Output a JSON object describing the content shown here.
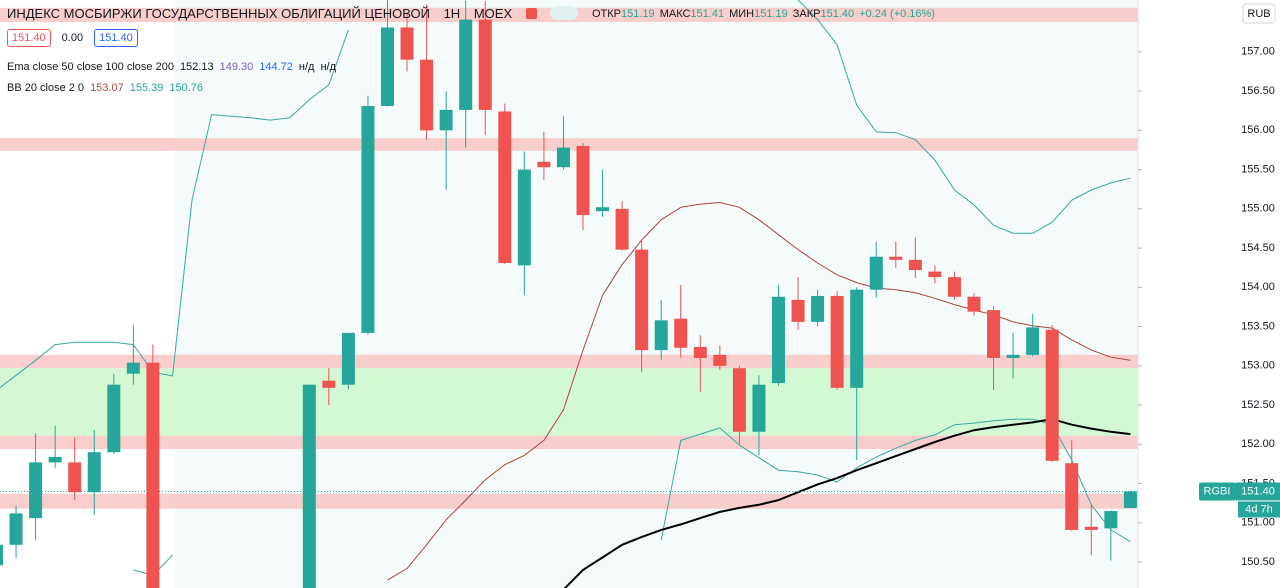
{
  "chart_data": {
    "type": "candlestick",
    "title": "ИНДЕКС МОСБИРЖИ ГОСУДАРСТВЕННЫХ ОБЛИГАЦИЙ ЦЕНОВОЙ",
    "interval": "1H",
    "exchange": "MOEX",
    "ohlc": [
      {
        "label": "ОТКР",
        "value": "151.19"
      },
      {
        "label": "МАКС",
        "value": "151.41"
      },
      {
        "label": "МИН",
        "value": "151.19"
      },
      {
        "label": "ЗАКР",
        "value": "151.40"
      }
    ],
    "change": "+0.24 (+0.16%)",
    "price_boxes": [
      "151.40",
      "0.00",
      "151.40"
    ],
    "indicators": [
      {
        "name": "Ema close 50 close 100 close 200",
        "values": [
          {
            "text": "152.13",
            "color": "#131722"
          },
          {
            "text": "149.30",
            "color": "#7e57c2"
          },
          {
            "text": "144.72",
            "color": "#2962ff"
          },
          {
            "text": "н/д",
            "color": "#131722"
          },
          {
            "text": "н/д",
            "color": "#131722"
          }
        ]
      },
      {
        "name": "BB 20 close 2 0",
        "values": [
          {
            "text": "153.07",
            "color": "#b24a3f"
          },
          {
            "text": "155.39",
            "color": "#26a69a"
          },
          {
            "text": "150.76",
            "color": "#26a69a"
          }
        ]
      }
    ],
    "currency": "RUB",
    "last_price": {
      "symbol": "RGBI",
      "value": 151.4,
      "label": "151.40",
      "countdown": "4d 7h",
      "color": "#26a69a"
    },
    "up_color": "#26a69a",
    "down_color": "#ef5350",
    "ylim": [
      150.17,
      157.66
    ],
    "yticks": [
      {
        "value": 157,
        "label": "157.00"
      },
      {
        "value": 156.5,
        "label": "156.50"
      },
      {
        "value": 156,
        "label": "156.00"
      },
      {
        "value": 155.5,
        "label": "155.50"
      },
      {
        "value": 155,
        "label": "155.00"
      },
      {
        "value": 154.5,
        "label": "154.50"
      },
      {
        "value": 154,
        "label": "154.00"
      },
      {
        "value": 153.5,
        "label": "153.50"
      },
      {
        "value": 153,
        "label": "153.00"
      },
      {
        "value": 152.5,
        "label": "152.50"
      },
      {
        "value": 152,
        "label": "152.00"
      },
      {
        "value": 151.5,
        "label": "151.50"
      },
      {
        "value": 151,
        "label": "151.00"
      },
      {
        "value": 150.5,
        "label": "150.50"
      }
    ],
    "bands": [
      {
        "from": 157.38,
        "to": 157.56,
        "color": "#f8c6c4"
      },
      {
        "from": 155.74,
        "to": 155.9,
        "color": "#f8c6c4"
      },
      {
        "from": 152.97,
        "to": 153.14,
        "color": "#f8c6c4"
      },
      {
        "from": 152.11,
        "to": 152.97,
        "color": "#cdf7cd"
      },
      {
        "from": 151.94,
        "to": 152.11,
        "color": "#f8c6c4"
      },
      {
        "from": 151.18,
        "to": 151.37,
        "color": "#f8c6c4"
      }
    ],
    "candles": {
      "open": [
        150.46,
        150.72,
        151.06,
        151.77,
        151.77,
        151.39,
        151.9,
        152.9,
        153.04,
        null,
        null,
        null,
        null,
        null,
        null,
        null,
        150.0,
        152.81,
        152.76,
        153.42,
        156.31,
        157.31,
        156.9,
        156.0,
        156.26,
        157.41,
        156.24,
        154.28,
        155.6,
        155.53,
        155.8,
        154.97,
        155.0,
        154.48,
        153.2,
        153.6,
        153.24,
        153.14,
        152.97,
        152.16,
        152.78,
        153.84,
        153.56,
        153.89,
        152.72,
        153.97,
        154.39,
        154.35,
        154.2,
        154.13,
        153.88,
        153.71,
        153.1,
        153.14,
        153.46,
        151.76,
        150.95,
        150.93,
        151.19
      ],
      "high": [
        150.75,
        151.22,
        152.14,
        152.24,
        152.09,
        152.18,
        152.9,
        153.52,
        153.27,
        null,
        null,
        null,
        null,
        null,
        null,
        null,
        152.76,
        152.97,
        153.42,
        156.44,
        157.7,
        157.5,
        157.6,
        156.5,
        157.65,
        157.65,
        156.34,
        155.73,
        155.98,
        156.18,
        155.84,
        155.5,
        155.1,
        154.6,
        153.84,
        154.03,
        153.39,
        153.26,
        153.0,
        152.88,
        154.03,
        154.13,
        153.97,
        153.95,
        154.0,
        154.58,
        154.58,
        154.63,
        154.28,
        154.2,
        153.93,
        153.76,
        153.42,
        153.66,
        153.52,
        152.06,
        151.23,
        151.16,
        151.41
      ],
      "low": [
        150.4,
        150.55,
        150.78,
        151.7,
        151.29,
        151.1,
        151.88,
        152.76,
        149.9,
        null,
        null,
        null,
        null,
        null,
        null,
        null,
        149.9,
        152.5,
        152.7,
        153.4,
        156.3,
        156.75,
        155.88,
        155.24,
        155.78,
        155.94,
        154.3,
        153.9,
        155.37,
        155.5,
        154.73,
        154.9,
        154.47,
        152.92,
        153.07,
        153.1,
        152.67,
        152.95,
        151.99,
        151.86,
        152.75,
        153.46,
        153.5,
        152.7,
        151.8,
        153.87,
        154.25,
        154.12,
        154.05,
        153.84,
        153.64,
        152.69,
        152.84,
        153.12,
        151.78,
        150.9,
        150.59,
        150.52,
        151.19
      ],
      "close": [
        150.72,
        151.12,
        151.77,
        151.84,
        151.39,
        151.9,
        152.76,
        153.04,
        150.0,
        null,
        null,
        null,
        null,
        null,
        null,
        null,
        152.76,
        152.72,
        153.42,
        156.31,
        157.31,
        156.9,
        156.0,
        156.26,
        157.41,
        156.26,
        154.31,
        155.5,
        155.53,
        155.78,
        154.92,
        155.02,
        154.48,
        153.2,
        153.58,
        153.23,
        153.1,
        153.0,
        152.16,
        152.76,
        153.88,
        153.56,
        153.89,
        152.72,
        153.97,
        154.39,
        154.35,
        154.22,
        154.13,
        153.88,
        153.69,
        153.1,
        153.14,
        153.49,
        151.79,
        150.91,
        150.91,
        151.15,
        151.4
      ]
    },
    "overlays": [
      {
        "color": "#3aa8a0",
        "width": 1,
        "values": [
          152.69,
          152.88,
          153.07,
          153.27,
          153.3,
          153.3,
          153.3,
          153.27,
          152.92,
          152.87,
          155.11,
          156.2,
          156.18,
          156.16,
          156.13,
          156.16,
          156.39,
          156.58,
          157.28,
          null,
          null,
          null,
          null,
          null,
          null,
          null,
          null,
          null,
          null,
          null,
          null,
          null,
          null,
          null,
          null,
          null,
          null,
          null,
          null,
          null,
          null,
          157.66,
          157.41,
          157.09,
          156.32,
          155.98,
          155.97,
          155.88,
          155.62,
          155.24,
          155.05,
          154.79,
          154.69,
          154.69,
          154.83,
          155.11,
          155.24,
          155.33,
          155.39
        ]
      },
      {
        "color": "#3aa8a0",
        "width": 1,
        "values": [
          null,
          null,
          null,
          null,
          null,
          null,
          null,
          150.4,
          150.33,
          150.59,
          null,
          null,
          null,
          null,
          null,
          null,
          null,
          null,
          null,
          null,
          null,
          null,
          null,
          null,
          null,
          null,
          null,
          null,
          null,
          null,
          null,
          null,
          null,
          null,
          150.78,
          152.05,
          152.13,
          152.21,
          151.99,
          151.83,
          151.67,
          151.65,
          151.61,
          151.52,
          151.7,
          151.84,
          151.95,
          152.05,
          152.12,
          152.25,
          152.27,
          152.3,
          152.32,
          152.32,
          152.25,
          151.8,
          151.23,
          150.91,
          150.76
        ]
      },
      {
        "color": "#a8453c",
        "width": 1,
        "values": [
          null,
          null,
          null,
          null,
          null,
          null,
          null,
          null,
          null,
          null,
          null,
          null,
          null,
          null,
          null,
          null,
          null,
          null,
          null,
          null,
          150.27,
          150.42,
          150.72,
          151.04,
          151.29,
          151.55,
          151.74,
          151.86,
          152.05,
          152.44,
          153.2,
          153.9,
          154.29,
          154.6,
          154.86,
          155.02,
          155.06,
          155.08,
          155.02,
          154.86,
          154.67,
          154.48,
          154.31,
          154.16,
          154.06,
          153.99,
          153.97,
          153.93,
          153.86,
          153.78,
          153.71,
          153.65,
          153.56,
          153.51,
          153.48,
          153.33,
          153.2,
          153.11,
          153.07
        ]
      },
      {
        "color": "#000000",
        "width": 2,
        "values": [
          null,
          null,
          null,
          null,
          null,
          null,
          null,
          null,
          null,
          null,
          null,
          null,
          null,
          null,
          null,
          null,
          null,
          null,
          null,
          null,
          null,
          null,
          null,
          null,
          null,
          null,
          null,
          null,
          null,
          150.15,
          150.4,
          150.56,
          150.72,
          150.82,
          150.91,
          150.98,
          151.06,
          151.14,
          151.19,
          151.23,
          151.29,
          151.39,
          151.49,
          151.57,
          151.67,
          151.76,
          151.85,
          151.94,
          152.03,
          152.11,
          152.18,
          152.22,
          152.25,
          152.28,
          152.32,
          152.25,
          152.2,
          152.16,
          152.13
        ]
      }
    ]
  }
}
